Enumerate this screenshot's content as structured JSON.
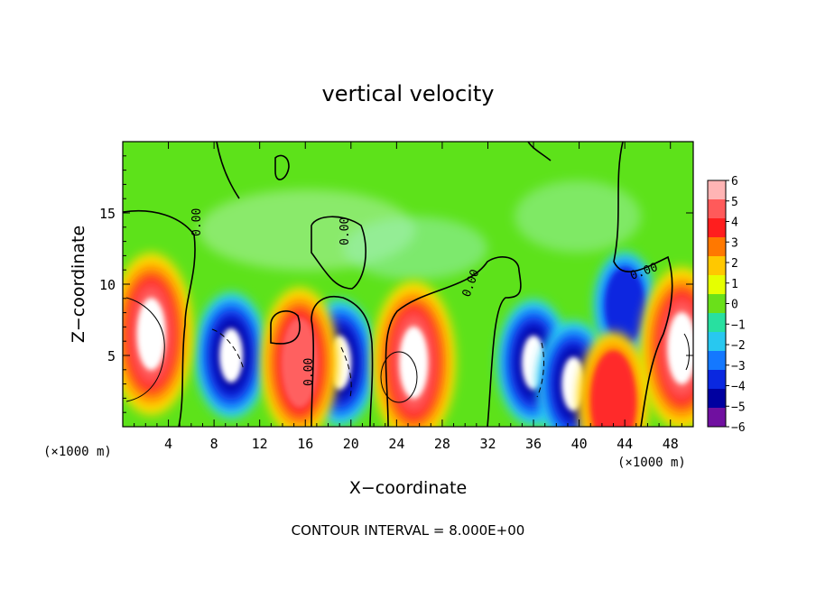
{
  "chart_data": {
    "type": "heatmap",
    "title": "vertical velocity",
    "xlabel": "X−coordinate",
    "ylabel": "Z−coordinate",
    "x_unit_left": "(×1000 m)",
    "x_unit_right": "(×1000 m)",
    "xlim": [
      0,
      50
    ],
    "ylim": [
      0,
      20
    ],
    "x_ticks": [
      "4",
      "8",
      "12",
      "16",
      "20",
      "24",
      "28",
      "32",
      "36",
      "40",
      "44",
      "48"
    ],
    "x_tick_values": [
      4,
      8,
      12,
      16,
      20,
      24,
      28,
      32,
      36,
      40,
      44,
      48
    ],
    "y_ticks": [
      "5",
      "10",
      "15"
    ],
    "y_tick_values": [
      5,
      10,
      15
    ],
    "colorbar": {
      "labels": [
        "6",
        "5",
        "4",
        "3",
        "2",
        "1",
        "0",
        "−1",
        "−2",
        "−3",
        "−4",
        "−5",
        "−6"
      ],
      "levels": [
        6,
        5,
        4,
        3,
        2,
        1,
        0,
        -1,
        -2,
        -3,
        -4,
        -5,
        -6
      ],
      "colors": [
        "#ffb4b4",
        "#ff5a5a",
        "#ff1e1e",
        "#ff7800",
        "#ffc800",
        "#e6ff00",
        "#6ae01a",
        "#28e0a0",
        "#28c8f0",
        "#1478ff",
        "#0a28e0",
        "#0000a0",
        "#7010a0"
      ]
    },
    "contour_labels": [
      "0.00",
      "0.00",
      "0.00",
      "0.00",
      "0.00"
    ],
    "footer": "CONTOUR INTERVAL = 8.000E+00",
    "updrafts": [
      {
        "x": 2.5,
        "z": 6.5,
        "w": 6
      },
      {
        "x": 15.5,
        "z": 4.5,
        "w": 5
      },
      {
        "x": 25.5,
        "z": 4.5,
        "w": 6
      },
      {
        "x": 43.0,
        "z": 1.8,
        "w": 4
      },
      {
        "x": 49.0,
        "z": 5.5,
        "w": 6
      }
    ],
    "downdrafts": [
      {
        "x": 9.5,
        "z": 5.0,
        "w": -6
      },
      {
        "x": 19.0,
        "z": 4.5,
        "w": -6
      },
      {
        "x": 36.0,
        "z": 4.5,
        "w": -6
      },
      {
        "x": 39.5,
        "z": 3.0,
        "w": -6
      },
      {
        "x": 44.0,
        "z": 8.5,
        "w": -4
      }
    ]
  }
}
